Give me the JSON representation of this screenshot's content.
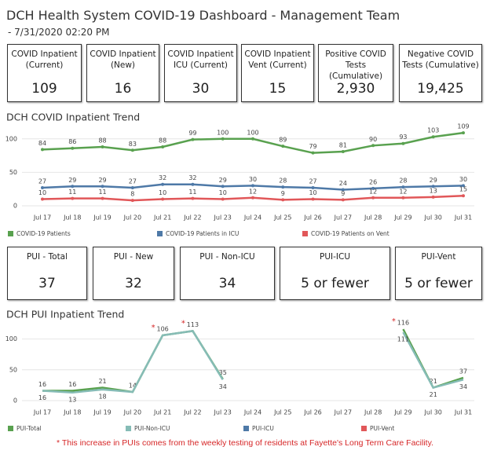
{
  "header": {
    "title": "DCH Health System COVID-19 Dashboard - Management Team",
    "subtitle": " - 7/31/2020 02:20 PM"
  },
  "kpis": [
    {
      "label": "COVID Inpatient (Current)",
      "value": "109"
    },
    {
      "label": "COVID Inpatient (New)",
      "value": "16"
    },
    {
      "label": "COVID Inpatient ICU (Current)",
      "value": "30"
    },
    {
      "label": "COVID Inpatient Vent (Current)",
      "value": "15"
    },
    {
      "label": "Positive COVID Tests (Cumulative)",
      "value": "2,930"
    },
    {
      "label": "Negative COVID Tests (Cumulative)",
      "value": "19,425"
    }
  ],
  "pui_kpis": [
    {
      "label": "PUI - Total",
      "value": "37"
    },
    {
      "label": "PUI - New",
      "value": "32"
    },
    {
      "label": "PUI - Non-ICU",
      "value": "34"
    },
    {
      "label": "PUI-ICU",
      "value": "5 or fewer"
    },
    {
      "label": "PUI-Vent",
      "value": "5 or fewer"
    }
  ],
  "chart_data": [
    {
      "type": "line",
      "title": "DCH COVID Inpatient Trend",
      "categories": [
        "Jul 17",
        "Jul 18",
        "Jul 19",
        "Jul 20",
        "Jul 21",
        "Jul 22",
        "Jul 23",
        "Jul 24",
        "Jul 25",
        "Jul 26",
        "Jul 27",
        "Jul 28",
        "Jul 29",
        "Jul 30",
        "Jul 31"
      ],
      "series": [
        {
          "name": "COVID-19 Patients",
          "color": "#59a14f",
          "values": [
            84,
            86,
            88,
            83,
            88,
            99,
            100,
            100,
            89,
            79,
            81,
            90,
            93,
            103,
            109
          ]
        },
        {
          "name": "COVID-19 Patients in ICU",
          "color": "#4e79a7",
          "values": [
            27,
            29,
            29,
            27,
            32,
            32,
            29,
            30,
            28,
            27,
            24,
            26,
            28,
            29,
            30
          ]
        },
        {
          "name": "COVID-19 Patients on Vent",
          "color": "#e15759",
          "values": [
            10,
            11,
            11,
            8,
            10,
            11,
            10,
            12,
            9,
            10,
            9,
            12,
            12,
            13,
            15
          ]
        }
      ],
      "ylim": [
        0,
        115
      ],
      "yticks": [
        0,
        50,
        100
      ],
      "grid": true,
      "markers": true,
      "legend": "bottom"
    },
    {
      "type": "line",
      "title": "DCH PUI Inpatient Trend",
      "categories": [
        "Jul 17",
        "Jul 18",
        "Jul 19",
        "Jul 20",
        "Jul 21",
        "Jul 22",
        "Jul 23",
        "Jul 24",
        "Jul 25",
        "Jul 26",
        "Jul 27",
        "Jul 28",
        "Jul 29",
        "Jul 30",
        "Jul 31"
      ],
      "series": [
        {
          "name": "PUI-Total",
          "color": "#59a14f",
          "values": [
            16,
            16,
            21,
            14,
            106,
            113,
            35,
            null,
            null,
            null,
            null,
            null,
            116,
            21,
            37
          ]
        },
        {
          "name": "PUI-Non-ICU",
          "color": "#86bcb6",
          "values": [
            16,
            13,
            18,
            14,
            106,
            113,
            34,
            null,
            null,
            null,
            null,
            null,
            111,
            21,
            34
          ],
          "value_labels": [
            "16",
            "13",
            "18",
            null,
            null,
            null,
            "34",
            null,
            null,
            null,
            null,
            null,
            "111",
            "21",
            "34"
          ]
        },
        {
          "name": "PUI-ICU",
          "color": "#4e79a7",
          "values": [
            null,
            null,
            null,
            null,
            null,
            null,
            null,
            null,
            null,
            null,
            null,
            null,
            null,
            null,
            null
          ]
        },
        {
          "name": "PUI-Vent",
          "color": "#e15759",
          "values": [
            null,
            null,
            null,
            null,
            null,
            null,
            null,
            null,
            null,
            null,
            null,
            null,
            null,
            null,
            null
          ]
        }
      ],
      "annotations": [
        {
          "x": "Jul 21",
          "text": "*"
        },
        {
          "x": "Jul 22",
          "text": "*"
        },
        {
          "x": "Jul 29",
          "text": "*"
        }
      ],
      "ylim": [
        0,
        125
      ],
      "yticks": [
        0,
        50,
        100
      ],
      "grid": true,
      "markers": false,
      "legend": "bottom"
    }
  ],
  "footnote": "* This increase in PUIs comes from the weekly testing of residents at Fayette's Long Term Care Facility."
}
